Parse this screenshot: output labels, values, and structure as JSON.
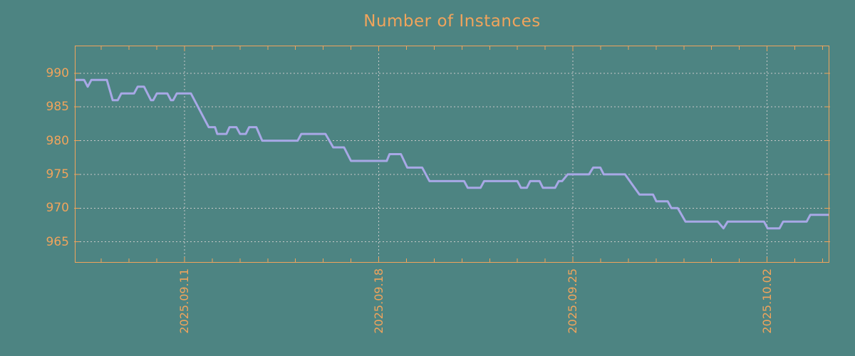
{
  "chart_data": {
    "type": "line",
    "title": "Number of Instances",
    "xlabel": "",
    "ylabel": "",
    "legend": "none",
    "grid": {
      "style": "dotted",
      "color": "#c9c9c9"
    },
    "x_axis": {
      "unit": "date",
      "day_unit": "day index relative to September 2025 (32 = 2025.10.02)",
      "tick_labels": [
        "2025.09.11",
        "2025.09.18",
        "2025.09.25",
        "2025.10.02"
      ],
      "tick_positions_days": [
        11,
        18,
        25,
        32
      ],
      "minor_tick_interval_days": 1,
      "range_days": [
        7.07,
        34.22
      ]
    },
    "y_axis": {
      "ticks": [
        965,
        970,
        975,
        980,
        985,
        990
      ],
      "range": [
        962,
        994
      ]
    },
    "series": [
      {
        "name": "instances",
        "color": "#a8a8e6",
        "points": [
          [
            7.07,
            989
          ],
          [
            7.38,
            989
          ],
          [
            7.51,
            988
          ],
          [
            7.64,
            989
          ],
          [
            8.2,
            989
          ],
          [
            8.41,
            986
          ],
          [
            8.59,
            986
          ],
          [
            8.72,
            987
          ],
          [
            9.18,
            987
          ],
          [
            9.31,
            988
          ],
          [
            9.54,
            988
          ],
          [
            9.79,
            986
          ],
          [
            9.87,
            986
          ],
          [
            10.0,
            987
          ],
          [
            10.38,
            987
          ],
          [
            10.51,
            986
          ],
          [
            10.59,
            986
          ],
          [
            10.72,
            987
          ],
          [
            11.23,
            987
          ],
          [
            11.87,
            982
          ],
          [
            12.1,
            982
          ],
          [
            12.18,
            981
          ],
          [
            12.51,
            981
          ],
          [
            12.62,
            982
          ],
          [
            12.87,
            982
          ],
          [
            13.0,
            981
          ],
          [
            13.21,
            981
          ],
          [
            13.33,
            982
          ],
          [
            13.59,
            982
          ],
          [
            13.8,
            980
          ],
          [
            15.08,
            980
          ],
          [
            15.21,
            981
          ],
          [
            16.08,
            981
          ],
          [
            16.36,
            979
          ],
          [
            16.75,
            979
          ],
          [
            17.0,
            977
          ],
          [
            18.29,
            977
          ],
          [
            18.39,
            978
          ],
          [
            18.8,
            978
          ],
          [
            19.03,
            976
          ],
          [
            19.57,
            976
          ],
          [
            19.83,
            974
          ],
          [
            21.08,
            974
          ],
          [
            21.21,
            973
          ],
          [
            21.67,
            973
          ],
          [
            21.8,
            974
          ],
          [
            23.0,
            974
          ],
          [
            23.13,
            973
          ],
          [
            23.34,
            973
          ],
          [
            23.46,
            974
          ],
          [
            23.8,
            974
          ],
          [
            23.92,
            973
          ],
          [
            24.36,
            973
          ],
          [
            24.49,
            974
          ],
          [
            24.61,
            974
          ],
          [
            24.81,
            975
          ],
          [
            25.58,
            975
          ],
          [
            25.73,
            976
          ],
          [
            25.99,
            976
          ],
          [
            26.11,
            975
          ],
          [
            26.88,
            975
          ],
          [
            27.4,
            972
          ],
          [
            27.89,
            972
          ],
          [
            28.01,
            971
          ],
          [
            28.42,
            971
          ],
          [
            28.55,
            970
          ],
          [
            28.78,
            970
          ],
          [
            29.06,
            968
          ],
          [
            30.22,
            968
          ],
          [
            30.43,
            967
          ],
          [
            30.58,
            968
          ],
          [
            31.89,
            968
          ],
          [
            32.02,
            967
          ],
          [
            32.45,
            967
          ],
          [
            32.58,
            968
          ],
          [
            33.43,
            968
          ],
          [
            33.56,
            969
          ],
          [
            34.22,
            969
          ]
        ]
      }
    ]
  },
  "colors": {
    "background": "#4d8482",
    "axis": "#f0a45c",
    "title": "#f0a45c",
    "line": "#a8a8e6",
    "grid": "#c9c9c9"
  }
}
